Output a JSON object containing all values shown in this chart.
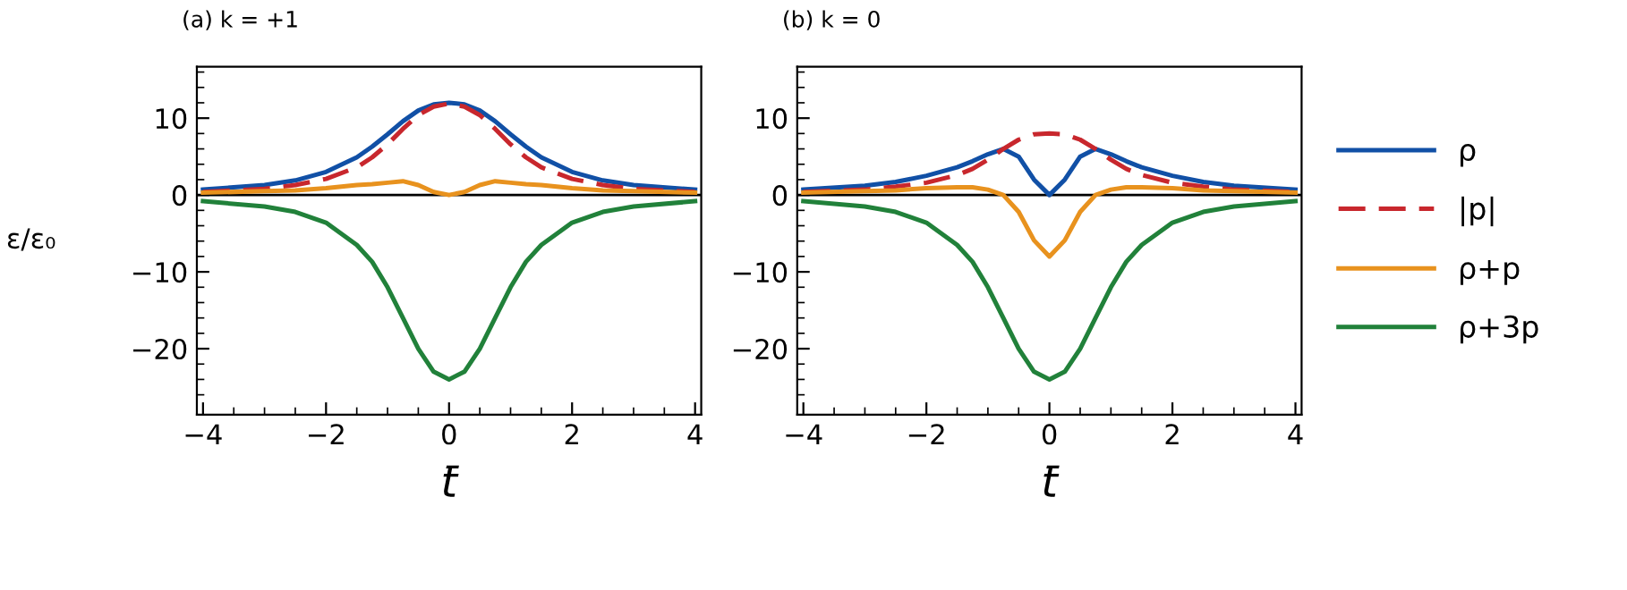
{
  "chart_data": [
    {
      "type": "line",
      "title": "(a) k = +1",
      "xlabel": "t̄",
      "ylabel": "ε/ε₀",
      "xlim": [
        -4.1,
        4.1
      ],
      "ylim": [
        -28.6,
        16.7
      ],
      "xticks": [
        -4,
        -2,
        0,
        2,
        4,
        {
          "value": -3.5,
          "label": null
        },
        {
          "value": -3,
          "label": null
        },
        {
          "value": -2.5,
          "label": null
        },
        {
          "value": -1.5,
          "label": null
        },
        {
          "value": -1,
          "label": null
        },
        {
          "value": -0.5,
          "label": null
        },
        {
          "value": 0.5,
          "label": null
        },
        {
          "value": 1,
          "label": null
        },
        {
          "value": 1.5,
          "label": null
        },
        {
          "value": 2.5,
          "label": null
        },
        {
          "value": 3,
          "label": null
        },
        {
          "value": 3.5,
          "label": null
        }
      ],
      "yticks": [
        -20,
        -10,
        0,
        10,
        {
          "value": -26,
          "label": null
        },
        {
          "value": -24,
          "label": null
        },
        {
          "value": -22,
          "label": null
        },
        {
          "value": -18,
          "label": null
        },
        {
          "value": -16,
          "label": null
        },
        {
          "value": -14,
          "label": null
        },
        {
          "value": -12,
          "label": null
        },
        {
          "value": -8,
          "label": null
        },
        {
          "value": -6,
          "label": null
        },
        {
          "value": -4,
          "label": null
        },
        {
          "value": -2,
          "label": null
        },
        {
          "value": 2,
          "label": null
        },
        {
          "value": 4,
          "label": null
        },
        {
          "value": 6,
          "label": null
        },
        {
          "value": 8,
          "label": null
        },
        {
          "value": 12,
          "label": null
        },
        {
          "value": 14,
          "label": null
        },
        {
          "value": 16,
          "label": null
        }
      ],
      "grid": false,
      "ref_lines": [
        {
          "axis": "y",
          "value": 0,
          "color": "#000000"
        }
      ],
      "x": [
        -4,
        -3,
        -2.5,
        -2,
        -1.5,
        -1.25,
        -1,
        -0.75,
        -0.5,
        -0.25,
        0,
        0.25,
        0.5,
        0.75,
        1,
        1.25,
        1.5,
        2,
        2.5,
        3,
        4
      ],
      "series": [
        {
          "color": "#1150a6",
          "line_style": "solid",
          "values": [
            0.7,
            1.3,
            1.9,
            3.0,
            4.9,
            6.3,
            7.9,
            9.6,
            11.0,
            11.8,
            12,
            11.8,
            11.0,
            9.6,
            7.9,
            6.3,
            4.9,
            3.0,
            1.9,
            1.3,
            0.7
          ]
        },
        {
          "color": "#c8272d",
          "line_style": "dashed",
          "values": [
            0.4,
            0.8,
            1.3,
            2.1,
            3.6,
            4.9,
            6.6,
            8.6,
            10.4,
            11.5,
            11.9,
            11.5,
            10.4,
            8.6,
            6.6,
            4.9,
            3.6,
            2.1,
            1.3,
            0.8,
            0.4
          ]
        },
        {
          "color": "#e8921e",
          "line_style": "solid",
          "values": [
            0.3,
            0.5,
            0.6,
            0.9,
            1.3,
            1.4,
            1.6,
            1.8,
            1.3,
            0.4,
            0,
            0.4,
            1.3,
            1.8,
            1.6,
            1.4,
            1.3,
            0.9,
            0.6,
            0.5,
            0.3
          ]
        },
        {
          "color": "#21813a",
          "line_style": "solid",
          "values": [
            -0.8,
            -1.5,
            -2.2,
            -3.6,
            -6.5,
            -8.7,
            -12,
            -16,
            -20,
            -23,
            -24,
            -23,
            -20,
            -16,
            -12,
            -8.7,
            -6.5,
            -3.6,
            -2.2,
            -1.5,
            -0.8
          ]
        }
      ]
    },
    {
      "type": "line",
      "title": "(b) k = 0",
      "xlabel": "t̄",
      "legend": "right",
      "xlim": [
        -4.1,
        4.1
      ],
      "ylim": [
        -28.6,
        16.7
      ],
      "xticks": [
        -4,
        -2,
        0,
        2,
        4,
        {
          "value": -3.5,
          "label": null
        },
        {
          "value": -3,
          "label": null
        },
        {
          "value": -2.5,
          "label": null
        },
        {
          "value": -1.5,
          "label": null
        },
        {
          "value": -1,
          "label": null
        },
        {
          "value": -0.5,
          "label": null
        },
        {
          "value": 0.5,
          "label": null
        },
        {
          "value": 1,
          "label": null
        },
        {
          "value": 1.5,
          "label": null
        },
        {
          "value": 2.5,
          "label": null
        },
        {
          "value": 3,
          "label": null
        },
        {
          "value": 3.5,
          "label": null
        }
      ],
      "yticks": [
        -20,
        -10,
        0,
        10,
        {
          "value": -26,
          "label": null
        },
        {
          "value": -24,
          "label": null
        },
        {
          "value": -22,
          "label": null
        },
        {
          "value": -18,
          "label": null
        },
        {
          "value": -16,
          "label": null
        },
        {
          "value": -14,
          "label": null
        },
        {
          "value": -12,
          "label": null
        },
        {
          "value": -8,
          "label": null
        },
        {
          "value": -6,
          "label": null
        },
        {
          "value": -4,
          "label": null
        },
        {
          "value": -2,
          "label": null
        },
        {
          "value": 2,
          "label": null
        },
        {
          "value": 4,
          "label": null
        },
        {
          "value": 6,
          "label": null
        },
        {
          "value": 8,
          "label": null
        },
        {
          "value": 12,
          "label": null
        },
        {
          "value": 14,
          "label": null
        },
        {
          "value": 16,
          "label": null
        }
      ],
      "grid": false,
      "ref_lines": [
        {
          "axis": "y",
          "value": 0,
          "color": "#000000"
        }
      ],
      "x": [
        -4,
        -3,
        -2.5,
        -2,
        -1.5,
        -1.25,
        -1,
        -0.75,
        -0.5,
        -0.25,
        0,
        0.25,
        0.5,
        0.75,
        1,
        1.25,
        1.5,
        2,
        2.5,
        3,
        4
      ],
      "series": [
        {
          "name": "ρ",
          "color": "#1150a6",
          "line_style": "solid",
          "values": [
            0.7,
            1.2,
            1.7,
            2.5,
            3.6,
            4.4,
            5.3,
            6.0,
            5.0,
            2.0,
            0,
            2.0,
            5.0,
            6.0,
            5.3,
            4.4,
            3.6,
            2.5,
            1.7,
            1.2,
            0.7
          ]
        },
        {
          "name": "|p|",
          "color": "#c8272d",
          "line_style": "dashed",
          "values": [
            0.4,
            0.7,
            1.1,
            1.6,
            2.6,
            3.4,
            4.6,
            6.0,
            7.2,
            7.9,
            8.0,
            7.9,
            7.2,
            6.0,
            4.6,
            3.4,
            2.6,
            1.6,
            1.1,
            0.7,
            0.4
          ]
        },
        {
          "name": "ρ+p",
          "color": "#e8921e",
          "line_style": "solid",
          "values": [
            0.3,
            0.5,
            0.6,
            0.9,
            1.0,
            1.0,
            0.7,
            0,
            -2.2,
            -5.9,
            -8,
            -5.9,
            -2.2,
            0,
            0.7,
            1.0,
            1.0,
            0.9,
            0.6,
            0.5,
            0.3
          ]
        },
        {
          "name": "ρ+3p",
          "color": "#21813a",
          "line_style": "solid",
          "values": [
            -0.8,
            -1.5,
            -2.2,
            -3.6,
            -6.5,
            -8.7,
            -12,
            -16,
            -20,
            -23,
            -24,
            -23,
            -20,
            -16,
            -12,
            -8.7,
            -6.5,
            -3.6,
            -2.2,
            -1.5,
            -0.8
          ]
        }
      ]
    }
  ]
}
